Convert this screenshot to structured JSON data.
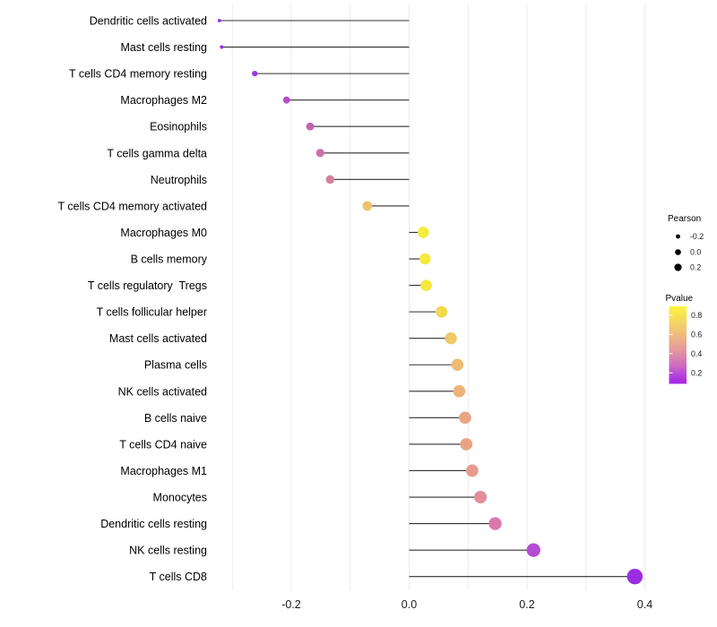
{
  "chart_data": {
    "type": "scatter",
    "subtype": "lollipop",
    "title": "",
    "xlabel": "",
    "ylabel": "",
    "xlim": [
      -0.36,
      0.42
    ],
    "x_ticks": [
      -0.2,
      0.0,
      0.2,
      0.4
    ],
    "x_tick_labels": [
      "-0.2",
      "0.0",
      "0.2",
      "0.4"
    ],
    "gridline_positions": [
      -0.3,
      -0.2,
      -0.1,
      0.0,
      0.1,
      0.2,
      0.3,
      0.4
    ],
    "grid": true,
    "legend_position": "right",
    "rows": [
      {
        "category": "Dendritic cells activated",
        "pearson": -0.322,
        "pvalue": 0.03,
        "color": "#9633e0"
      },
      {
        "category": "Mast cells resting",
        "pearson": -0.318,
        "pvalue": 0.03,
        "color": "#9633e0"
      },
      {
        "category": "T cells CD4 memory resting",
        "pearson": -0.262,
        "pvalue": 0.09,
        "color": "#9d3bd9"
      },
      {
        "category": "Macrophages M2",
        "pearson": -0.208,
        "pvalue": 0.18,
        "color": "#b44ec8"
      },
      {
        "category": "Eosinophils",
        "pearson": -0.168,
        "pvalue": 0.27,
        "color": "#c463b3"
      },
      {
        "category": "T cells gamma delta",
        "pearson": -0.151,
        "pvalue": 0.32,
        "color": "#cc70a9"
      },
      {
        "category": "Neutrophils",
        "pearson": -0.134,
        "pvalue": 0.38,
        "color": "#d4819b"
      },
      {
        "category": "T cells CD4 memory activated",
        "pearson": -0.071,
        "pvalue": 0.64,
        "color": "#eec46a"
      },
      {
        "category": "Macrophages M0",
        "pearson": 0.024,
        "pvalue": 0.88,
        "color": "#f5ec3d"
      },
      {
        "category": "B cells memory",
        "pearson": 0.027,
        "pvalue": 0.87,
        "color": "#f5ea3e"
      },
      {
        "category": "T cells regulatory  Tregs",
        "pearson": 0.029,
        "pvalue": 0.86,
        "color": "#f5e93f"
      },
      {
        "category": "T cells follicular helper",
        "pearson": 0.055,
        "pvalue": 0.77,
        "color": "#f2d94e"
      },
      {
        "category": "Mast cells activated",
        "pearson": 0.071,
        "pvalue": 0.65,
        "color": "#efc967"
      },
      {
        "category": "Plasma cells",
        "pearson": 0.082,
        "pvalue": 0.59,
        "color": "#edbb74"
      },
      {
        "category": "NK cells activated",
        "pearson": 0.085,
        "pvalue": 0.57,
        "color": "#ecb47a"
      },
      {
        "category": "B cells naive",
        "pearson": 0.095,
        "pvalue": 0.52,
        "color": "#e9a685"
      },
      {
        "category": "T cells CD4 naive",
        "pearson": 0.097,
        "pvalue": 0.51,
        "color": "#e9a384"
      },
      {
        "category": "Macrophages M1",
        "pearson": 0.107,
        "pvalue": 0.47,
        "color": "#e79b8e"
      },
      {
        "category": "Monocytes",
        "pearson": 0.121,
        "pvalue": 0.41,
        "color": "#e28e9b"
      },
      {
        "category": "Dendritic cells resting",
        "pearson": 0.146,
        "pvalue": 0.33,
        "color": "#d978ad"
      },
      {
        "category": "NK cells resting",
        "pearson": 0.211,
        "pvalue": 0.15,
        "color": "#b44bd4"
      },
      {
        "category": "T cells CD8",
        "pearson": 0.383,
        "pvalue": 0.01,
        "color": "#9c2de2"
      }
    ],
    "legend_size": {
      "title": "Pearson",
      "labels": [
        "-0.2",
        "0.0",
        "0.2"
      ],
      "values": [
        -0.2,
        0.0,
        0.2
      ],
      "dot_color": "#000000"
    },
    "legend_color": {
      "title": "Pvalue",
      "tick_labels": [
        "0.8",
        "0.6",
        "0.4",
        "0.2"
      ],
      "gradient_top_to_bottom": [
        "#fcf63d",
        "#f1cb6f",
        "#e39b9b",
        "#cb66c5",
        "#a625e8"
      ]
    }
  },
  "colors": {
    "background": "#ffffff",
    "stem": "#303030",
    "gridline": "#ebebeb",
    "text": "#000000",
    "tick_text": "#1a1a1a"
  }
}
